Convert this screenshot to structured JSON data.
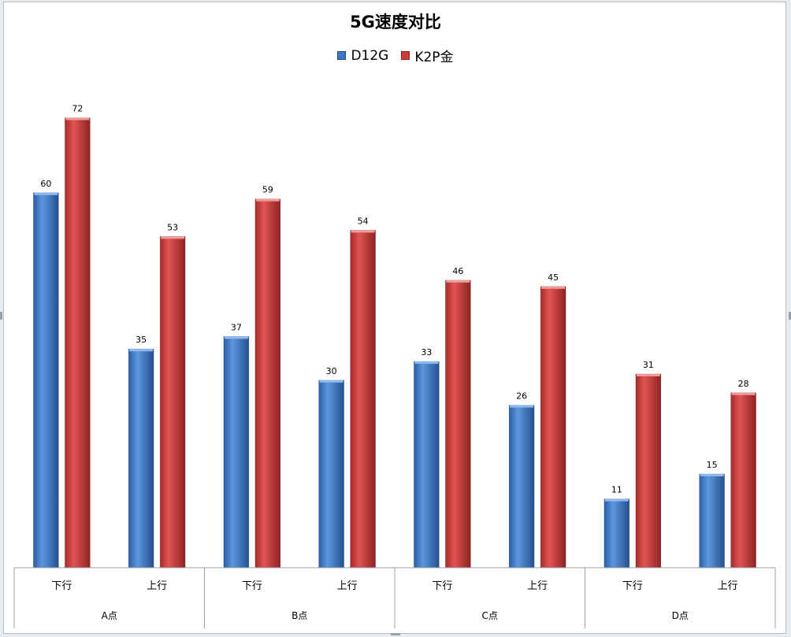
{
  "chart_data": {
    "type": "bar",
    "title": "5G速度对比",
    "legend_position": "top",
    "groups": [
      "A点",
      "B点",
      "C点",
      "D点"
    ],
    "subcategories": [
      "下行",
      "上行"
    ],
    "categories": [
      "A点 下行",
      "A点 上行",
      "B点 下行",
      "B点 上行",
      "C点 下行",
      "C点 上行",
      "D点 下行",
      "D点 上行"
    ],
    "series": [
      {
        "name": "D12G",
        "color": "#3a77c8",
        "values": [
          60,
          35,
          37,
          30,
          33,
          26,
          11,
          15
        ]
      },
      {
        "name": "K2P金",
        "color": "#d23b3b",
        "values": [
          72,
          53,
          59,
          54,
          46,
          45,
          31,
          28
        ]
      }
    ],
    "ylim": [
      0,
      80
    ],
    "grid": false,
    "show_data_labels": true
  }
}
